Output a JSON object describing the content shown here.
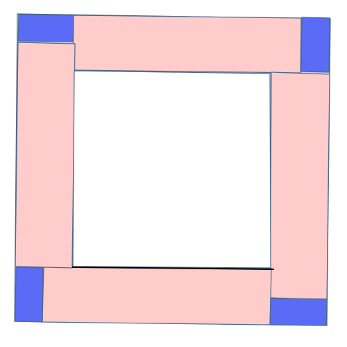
{
  "diagram": {
    "type": "pinwheel-frame",
    "colors": {
      "background": "#ffffff",
      "outer_frame_fill": "#c9d6ea",
      "rectangle_fill": "#ffcccc",
      "corner_square_fill": "#5a6cf5",
      "inner_square_fill": "#ffffff",
      "outline": "#4a6a8a",
      "baseline": "#000000"
    },
    "pieces": {
      "rectangles": [
        "top",
        "right",
        "bottom",
        "left"
      ],
      "corner_squares": [
        "top-left",
        "top-right",
        "bottom-left",
        "bottom-right"
      ],
      "center": "inner-square"
    }
  }
}
